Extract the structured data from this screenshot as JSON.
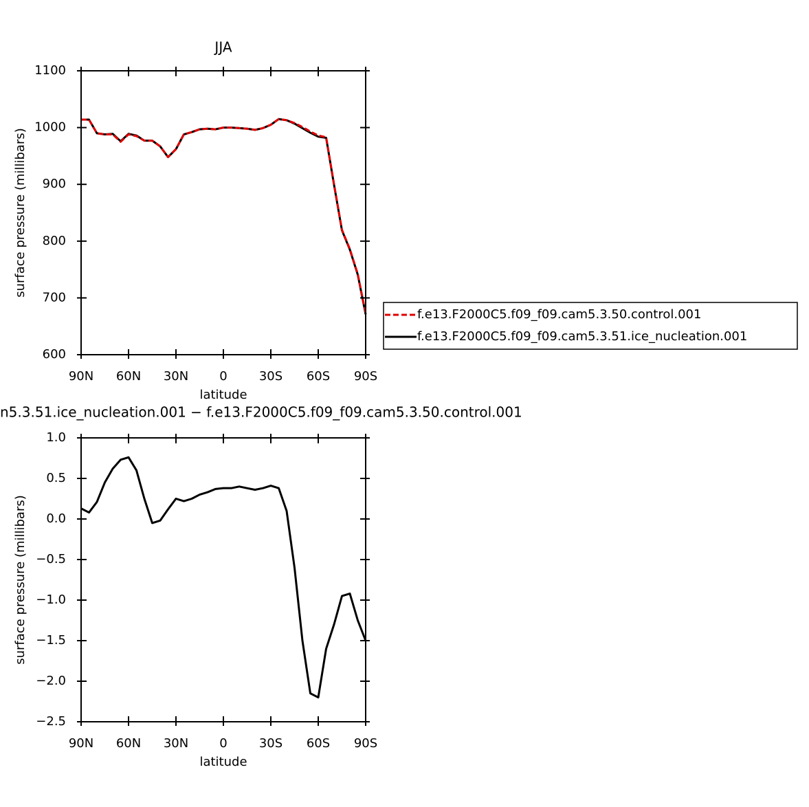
{
  "chart_data": [
    {
      "type": "line",
      "title": "JJA",
      "x_label": "latitude",
      "y_label": "surface pressure (millibars)",
      "x": [
        90,
        85,
        80,
        75,
        70,
        65,
        60,
        55,
        50,
        45,
        40,
        35,
        30,
        25,
        20,
        15,
        10,
        5,
        0,
        -5,
        -10,
        -15,
        -20,
        -25,
        -30,
        -35,
        -40,
        -45,
        -50,
        -55,
        -60,
        -65,
        -70,
        -75,
        -80,
        -85,
        -90
      ],
      "series": [
        {
          "name": "f.e13.F2000C5.f09_f09.cam5.3.50.control.001",
          "color": "#e00000",
          "dash": true,
          "values": [
            1014,
            1014,
            990,
            988,
            988,
            975,
            988,
            985,
            977,
            977,
            967,
            948,
            962,
            988,
            992,
            997,
            998,
            997,
            1000,
            1000,
            999,
            998,
            996,
            999,
            1005,
            1015,
            1013,
            1008,
            1001,
            993,
            986,
            983,
            900,
            820,
            786,
            742,
            672
          ]
        },
        {
          "name": "f.e13.F2000C5.f09_f09.cam5.3.51.ice_nucleation.001",
          "color": "#000000",
          "dash": false,
          "values": [
            1014,
            1014,
            990,
            988,
            989,
            976,
            989,
            986,
            977,
            977,
            967,
            948,
            962,
            988,
            992,
            997,
            998,
            997,
            1000,
            1000,
            999,
            998,
            996,
            999,
            1005,
            1015,
            1013,
            1007,
            999,
            991,
            984,
            982,
            899,
            819,
            785,
            741,
            671
          ]
        }
      ],
      "xlim": [
        90,
        -90
      ],
      "xticks": [
        {
          "value": 90,
          "label": "90N"
        },
        {
          "value": 60,
          "label": "60N"
        },
        {
          "value": 30,
          "label": "30N"
        },
        0,
        {
          "value": -30,
          "label": "30S"
        },
        {
          "value": -60,
          "label": "60S"
        },
        {
          "value": -90,
          "label": "90S"
        }
      ],
      "ylim": [
        600,
        1100
      ],
      "yticks": [
        600,
        700,
        800,
        900,
        1000,
        1100
      ],
      "legend": "right"
    },
    {
      "type": "line",
      "title": "n5.3.51.ice_nucleation.001 − f.e13.F2000C5.f09_f09.cam5.3.50.control.001",
      "x_label": "latitude",
      "y_label": "surface pressure (millibars)",
      "x": [
        90,
        85,
        80,
        75,
        70,
        65,
        60,
        55,
        50,
        45,
        40,
        35,
        30,
        25,
        20,
        15,
        10,
        5,
        0,
        -5,
        -10,
        -15,
        -20,
        -25,
        -30,
        -35,
        -40,
        -45,
        -50,
        -55,
        -60,
        -65,
        -70,
        -75,
        -80,
        -85,
        -90
      ],
      "values": [
        0.13,
        0.08,
        0.21,
        0.45,
        0.62,
        0.73,
        0.76,
        0.6,
        0.25,
        -0.05,
        -0.02,
        0.12,
        0.25,
        0.22,
        0.25,
        0.3,
        0.33,
        0.37,
        0.38,
        0.38,
        0.4,
        0.38,
        0.36,
        0.38,
        0.41,
        0.38,
        0.1,
        -0.6,
        -1.5,
        -2.15,
        -2.2,
        -1.6,
        -1.3,
        -0.95,
        -0.92,
        -1.25,
        -1.5
      ],
      "color": "#000000",
      "xlim": [
        90,
        -90
      ],
      "xticks": [
        {
          "value": 90,
          "label": "90N"
        },
        {
          "value": 60,
          "label": "60N"
        },
        {
          "value": 30,
          "label": "30N"
        },
        0,
        {
          "value": -30,
          "label": "30S"
        },
        {
          "value": -60,
          "label": "60S"
        },
        {
          "value": -90,
          "label": "90S"
        }
      ],
      "ylim": [
        -2.5,
        1.0
      ],
      "yticks": [
        {
          "value": -2.5,
          "label": "−2.5"
        },
        {
          "value": -2,
          "label": "−2.0"
        },
        {
          "value": -1.5,
          "label": "−1.5"
        },
        {
          "value": -1,
          "label": "−1.0"
        },
        {
          "value": -0.5,
          "label": "−0.5"
        },
        {
          "value": 0,
          "label": "0.0"
        },
        0.5,
        {
          "value": 1,
          "label": "1.0"
        }
      ]
    }
  ]
}
